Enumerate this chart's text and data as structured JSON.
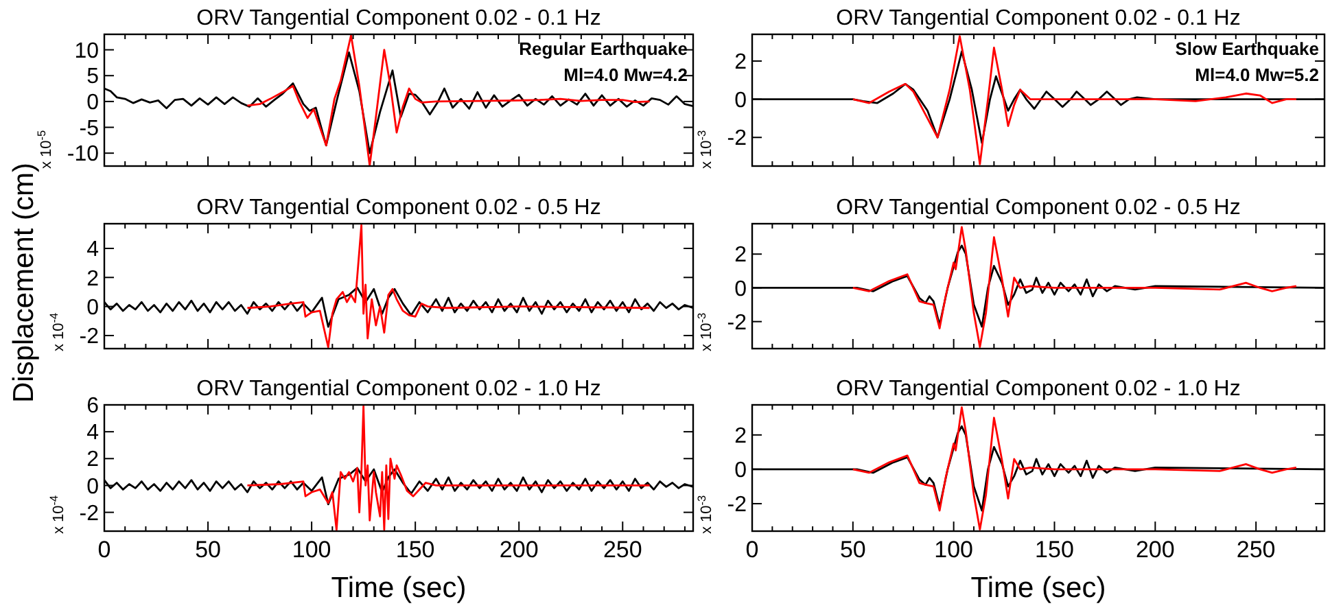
{
  "chart_data": [
    {
      "type": "line",
      "title": "ORV Tangential Component 0.02 - 0.1 Hz",
      "ylabel": "x 10$^{-5}$",
      "annotations": [
        "Regular Earthquake",
        "Ml=4.0 Mw=4.2"
      ],
      "tick_labels": "y",
      "xlim": [
        0,
        284
      ],
      "xticks": [
        0,
        {
          "value": 10,
          "label": null
        },
        {
          "value": 20,
          "label": null
        },
        {
          "value": 30,
          "label": null
        },
        {
          "value": 40,
          "label": null
        },
        50,
        {
          "value": 60,
          "label": null
        },
        {
          "value": 70,
          "label": null
        },
        {
          "value": 80,
          "label": null
        },
        {
          "value": 90,
          "label": null
        },
        100,
        {
          "value": 110,
          "label": null
        },
        {
          "value": 120,
          "label": null
        },
        {
          "value": 130,
          "label": null
        },
        {
          "value": 140,
          "label": null
        },
        150,
        {
          "value": 160,
          "label": null
        },
        {
          "value": 170,
          "label": null
        },
        {
          "value": 180,
          "label": null
        },
        {
          "value": 190,
          "label": null
        },
        200,
        {
          "value": 210,
          "label": null
        },
        {
          "value": 220,
          "label": null
        },
        {
          "value": 230,
          "label": null
        },
        {
          "value": 240,
          "label": null
        },
        250,
        {
          "value": 260,
          "label": null
        },
        {
          "value": 270,
          "label": null
        },
        {
          "value": 280,
          "label": null
        }
      ],
      "ylim": [
        -12.5,
        13
      ],
      "yticks": [
        -10,
        -5,
        0,
        5,
        10
      ],
      "series": [
        {
          "color": "#000000",
          "x": [
            0,
            3,
            6,
            10,
            14,
            18,
            22,
            26,
            30,
            34,
            38,
            42,
            46,
            50,
            54,
            58,
            62,
            66,
            70,
            74,
            78,
            82,
            86,
            91,
            96,
            99,
            102,
            107,
            112,
            118,
            123,
            128,
            133,
            139,
            143,
            147,
            150,
            153,
            157,
            161,
            164,
            168,
            172,
            176,
            180,
            184,
            188,
            192,
            196,
            200,
            204,
            208,
            212,
            216,
            220,
            224,
            228,
            232,
            236,
            240,
            244,
            248,
            252,
            256,
            260,
            264,
            268,
            272,
            276,
            280,
            284
          ],
          "values": [
            2.5,
            2,
            0.8,
            0.5,
            -0.3,
            0.4,
            -0.2,
            0.2,
            -1.3,
            0.3,
            0.5,
            -0.8,
            0.6,
            -0.6,
            0.8,
            -0.5,
            0.8,
            -0.3,
            -1,
            0.6,
            -1,
            0.3,
            1.5,
            3.5,
            -0.5,
            -1.8,
            -1.2,
            -8.5,
            0,
            9.5,
            2,
            -10,
            -2,
            6,
            -3,
            1.5,
            1.3,
            0,
            -2.5,
            0,
            2.5,
            -1.2,
            0.5,
            -1.4,
            1.8,
            -1.2,
            1.2,
            -1,
            0.2,
            1.3,
            -0.8,
            0.5,
            -0.6,
            1,
            -0.8,
            0.4,
            -0.6,
            1.5,
            -0.8,
            1.2,
            -0.8,
            0.5,
            -1,
            0.2,
            -0.8,
            0.6,
            0.3,
            -0.6,
            1,
            -0.5,
            -0.9
          ]
        },
        {
          "color": "#ff0000",
          "x": [
            69,
            75,
            80,
            86,
            91,
            94,
            98,
            101,
            107,
            111,
            114,
            119,
            123,
            128,
            131,
            135,
            138,
            141,
            144,
            147,
            150,
            153,
            160,
            180,
            200,
            210,
            220,
            230,
            240,
            250,
            256,
            263
          ],
          "values": [
            -0.8,
            -0.5,
            0.5,
            1.8,
            3,
            0,
            -3.2,
            -1.5,
            -8.5,
            0.5,
            4,
            12.8,
            3,
            -12.4,
            -3,
            10,
            3,
            -6,
            -1,
            2.5,
            0.5,
            -0.2,
            0,
            0.1,
            0.2,
            0.3,
            0.5,
            0.1,
            0.3,
            0.3,
            -0.1,
            0
          ]
        }
      ]
    },
    {
      "type": "line",
      "title": "ORV Tangential Component 0.02 - 0.1 Hz",
      "ylabel": "x 10$^{-3}$",
      "annotations": [
        "Slow Earthquake",
        "Ml=4.0 Mw=5.2"
      ],
      "tick_labels": "y",
      "xlim": [
        0,
        284
      ],
      "xticks": [
        0,
        {
          "value": 10,
          "label": null
        },
        {
          "value": 20,
          "label": null
        },
        {
          "value": 30,
          "label": null
        },
        {
          "value": 40,
          "label": null
        },
        50,
        {
          "value": 60,
          "label": null
        },
        {
          "value": 70,
          "label": null
        },
        {
          "value": 80,
          "label": null
        },
        {
          "value": 90,
          "label": null
        },
        100,
        {
          "value": 110,
          "label": null
        },
        {
          "value": 120,
          "label": null
        },
        {
          "value": 130,
          "label": null
        },
        {
          "value": 140,
          "label": null
        },
        150,
        {
          "value": 160,
          "label": null
        },
        {
          "value": 170,
          "label": null
        },
        {
          "value": 180,
          "label": null
        },
        {
          "value": 190,
          "label": null
        },
        200,
        {
          "value": 210,
          "label": null
        },
        {
          "value": 220,
          "label": null
        },
        {
          "value": 230,
          "label": null
        },
        {
          "value": 240,
          "label": null
        },
        250,
        {
          "value": 260,
          "label": null
        },
        {
          "value": 270,
          "label": null
        },
        {
          "value": 280,
          "label": null
        }
      ],
      "ylim": [
        -3.5,
        3.4
      ],
      "yticks": [
        -2,
        0,
        2
      ],
      "series": [
        {
          "color": "#000000",
          "x": [
            0,
            20,
            40,
            50,
            55,
            62,
            70,
            76,
            80,
            87,
            92,
            98,
            104,
            109,
            114,
            118,
            121,
            124,
            127,
            130,
            133,
            136,
            140,
            146,
            150,
            154,
            158,
            161,
            165,
            168,
            172,
            176,
            180,
            183,
            187,
            191,
            200,
            284
          ],
          "values": [
            0,
            0,
            0,
            0,
            -0.1,
            -0.2,
            0.3,
            0.8,
            0.5,
            -0.6,
            -2,
            0,
            2.5,
            0.5,
            -2.3,
            0,
            1.2,
            0.3,
            -0.6,
            0,
            0.5,
            0,
            -0.5,
            0.4,
            0,
            -0.4,
            0,
            0.4,
            0,
            -0.3,
            0,
            0.4,
            0,
            -0.3,
            0,
            0.1,
            0,
            0
          ]
        },
        {
          "color": "#ff0000",
          "x": [
            50,
            58,
            68,
            76,
            80,
            86,
            92,
            98,
            103,
            108,
            113,
            117,
            120,
            124,
            127,
            130,
            133,
            138,
            150,
            200,
            220,
            235,
            245,
            252,
            258,
            265,
            270
          ],
          "values": [
            0,
            -0.2,
            0.4,
            0.8,
            0.4,
            -0.8,
            -2,
            0.5,
            3.3,
            0.5,
            -3.4,
            0,
            2.7,
            0.5,
            -1.4,
            -0.3,
            0.5,
            0,
            0,
            0,
            -0.1,
            0.1,
            0.3,
            0.2,
            -0.2,
            0,
            0
          ]
        }
      ]
    },
    {
      "type": "line",
      "title": "ORV Tangential Component 0.02 - 0.5 Hz",
      "ylabel": "x 10$^{-4}$",
      "annotations": [
        "Displacement (cm)"
      ],
      "tick_labels": "y",
      "xlim": [
        0,
        284
      ],
      "xticks": [
        0,
        {
          "value": 10,
          "label": null
        },
        {
          "value": 20,
          "label": null
        },
        {
          "value": 30,
          "label": null
        },
        {
          "value": 40,
          "label": null
        },
        50,
        {
          "value": 60,
          "label": null
        },
        {
          "value": 70,
          "label": null
        },
        {
          "value": 80,
          "label": null
        },
        {
          "value": 90,
          "label": null
        },
        100,
        {
          "value": 110,
          "label": null
        },
        {
          "value": 120,
          "label": null
        },
        {
          "value": 130,
          "label": null
        },
        {
          "value": 140,
          "label": null
        },
        150,
        {
          "value": 160,
          "label": null
        },
        {
          "value": 170,
          "label": null
        },
        {
          "value": 180,
          "label": null
        },
        {
          "value": 190,
          "label": null
        },
        200,
        {
          "value": 210,
          "label": null
        },
        {
          "value": 220,
          "label": null
        },
        {
          "value": 230,
          "label": null
        },
        {
          "value": 240,
          "label": null
        },
        250,
        {
          "value": 260,
          "label": null
        },
        {
          "value": 270,
          "label": null
        },
        {
          "value": 280,
          "label": null
        }
      ],
      "ylim": [
        -2.9,
        5.7
      ],
      "yticks": [
        -2,
        0,
        2,
        4
      ],
      "series": [
        {
          "color": "#000000",
          "x": [
            0,
            3,
            6,
            9,
            12,
            15,
            18,
            21,
            24,
            27,
            30,
            33,
            36,
            39,
            42,
            45,
            48,
            51,
            54,
            57,
            60,
            63,
            66,
            69,
            72,
            75,
            78,
            81,
            84,
            87,
            90,
            93,
            96,
            100,
            105,
            108,
            113,
            118,
            122,
            126,
            130,
            134,
            137,
            140,
            144,
            148,
            152,
            156,
            160,
            163,
            166,
            169,
            172,
            175,
            178,
            181,
            184,
            187,
            190,
            193,
            196,
            199,
            202,
            205,
            208,
            211,
            214,
            217,
            220,
            223,
            226,
            229,
            232,
            235,
            238,
            241,
            244,
            247,
            250,
            253,
            256,
            259,
            262,
            265,
            268,
            271,
            274,
            277,
            280,
            284
          ],
          "values": [
            0.3,
            -0.2,
            0.2,
            -0.3,
            0.1,
            -0.2,
            0.3,
            -0.3,
            0.1,
            -0.4,
            0.2,
            -0.3,
            0.3,
            -0.2,
            0.4,
            -0.3,
            0.2,
            -0.4,
            0.3,
            -0.2,
            0.3,
            -0.3,
            0.1,
            -0.5,
            0.3,
            -0.2,
            0.2,
            -0.3,
            0.3,
            -0.2,
            0.3,
            -0.3,
            0.2,
            -0.4,
            0.6,
            -1.4,
            0.5,
            0.8,
            1.3,
            0.3,
            1.2,
            -0.5,
            0.6,
            1.2,
            0.2,
            -0.6,
            0.3,
            -0.4,
            0.5,
            -0.3,
            0.6,
            -0.4,
            0.2,
            -0.3,
            0.4,
            -0.2,
            0.3,
            -0.4,
            0.5,
            -0.3,
            0.2,
            -0.4,
            0.6,
            -0.3,
            0.3,
            -0.5,
            0.4,
            -0.2,
            0.3,
            -0.4,
            0.2,
            -0.3,
            0.5,
            -0.4,
            0.3,
            -0.2,
            0.4,
            -0.3,
            0.3,
            -0.4,
            0.5,
            -0.2,
            0.2,
            -0.3,
            0.3,
            -0.1,
            0.2,
            -0.2,
            0.1,
            -0.1
          ]
        },
        {
          "color": "#ff0000",
          "x": [
            69,
            80,
            90,
            96,
            97,
            100,
            104,
            108,
            110,
            112,
            115,
            117,
            119,
            121,
            124,
            125,
            126,
            127,
            129,
            131,
            133,
            135,
            137,
            139,
            141,
            144,
            147,
            150,
            153,
            156,
            165,
            200,
            263
          ],
          "values": [
            -0.1,
            0,
            0.2,
            0.3,
            -0.7,
            -0.4,
            -0.3,
            -2.8,
            -0.5,
            0.5,
            1,
            0.3,
            0.8,
            0.3,
            5.6,
            -0.5,
            1.5,
            -2.2,
            0.5,
            -1.3,
            0,
            -1.8,
            0.8,
            1.2,
            0.5,
            -0.3,
            -0.6,
            -0.7,
            0.2,
            0,
            -0.1,
            0,
            -0.1
          ]
        }
      ]
    },
    {
      "type": "line",
      "title": "ORV Tangential Component 0.02 - 0.5 Hz",
      "ylabel": "x 10$^{-3}$",
      "tick_labels": "y",
      "xlim": [
        0,
        284
      ],
      "xticks": [
        0,
        {
          "value": 10,
          "label": null
        },
        {
          "value": 20,
          "label": null
        },
        {
          "value": 30,
          "label": null
        },
        {
          "value": 40,
          "label": null
        },
        50,
        {
          "value": 60,
          "label": null
        },
        {
          "value": 70,
          "label": null
        },
        {
          "value": 80,
          "label": null
        },
        {
          "value": 90,
          "label": null
        },
        100,
        {
          "value": 110,
          "label": null
        },
        {
          "value": 120,
          "label": null
        },
        {
          "value": 130,
          "label": null
        },
        {
          "value": 140,
          "label": null
        },
        150,
        {
          "value": 160,
          "label": null
        },
        {
          "value": 170,
          "label": null
        },
        {
          "value": 180,
          "label": null
        },
        {
          "value": 190,
          "label": null
        },
        200,
        {
          "value": 210,
          "label": null
        },
        {
          "value": 220,
          "label": null
        },
        {
          "value": 230,
          "label": null
        },
        {
          "value": 240,
          "label": null
        },
        250,
        {
          "value": 260,
          "label": null
        },
        {
          "value": 270,
          "label": null
        },
        {
          "value": 280,
          "label": null
        }
      ],
      "ylim": [
        -3.6,
        3.8
      ],
      "yticks": [
        -2,
        0,
        2
      ],
      "series": [
        {
          "color": "#000000",
          "x": [
            0,
            52,
            60,
            70,
            77,
            83,
            86,
            88,
            90,
            93,
            97,
            102,
            104,
            106,
            110,
            114,
            117,
            120,
            124,
            127,
            130,
            133,
            136,
            139,
            141,
            144,
            147,
            150,
            153,
            157,
            160,
            163,
            166,
            169,
            172,
            176,
            180,
            190,
            200,
            284
          ],
          "values": [
            0,
            0,
            -0.2,
            0.4,
            0.7,
            -0.6,
            -0.9,
            -0.5,
            -0.8,
            -2.2,
            0,
            2.1,
            2.5,
            2,
            -1,
            -2.3,
            0,
            1.3,
            0.3,
            -1,
            -0.4,
            0.5,
            -0.3,
            -0.1,
            0.6,
            -0.3,
            0.3,
            -0.4,
            0.3,
            -0.2,
            0.2,
            -0.4,
            0.5,
            -0.5,
            0.2,
            -0.2,
            0.1,
            -0.1,
            0.1,
            0
          ]
        },
        {
          "color": "#ff0000",
          "x": [
            50,
            58,
            68,
            77,
            83,
            86,
            90,
            93,
            96,
            100,
            101,
            104,
            106,
            110,
            113,
            116,
            120,
            124,
            127,
            130,
            133,
            138,
            150,
            200,
            232,
            245,
            252,
            258,
            265,
            270
          ],
          "values": [
            0,
            -0.2,
            0.4,
            0.8,
            -0.8,
            -0.9,
            -1,
            -2.4,
            -0.5,
            1.5,
            1.1,
            3.6,
            2.2,
            -1.5,
            -3.5,
            -1.5,
            3,
            0.5,
            -1.7,
            0.6,
            0,
            0.1,
            0,
            0,
            -0.1,
            0.3,
            0,
            -0.2,
            0,
            0.1
          ]
        }
      ]
    },
    {
      "type": "line",
      "title": "ORV Tangential Component 0.02 - 1.0 Hz",
      "xlabel": "Time (sec)",
      "ylabel": "x 10$^{-4}$",
      "xlim": [
        0,
        284
      ],
      "xticks": [
        0,
        {
          "value": 10,
          "label": null
        },
        {
          "value": 20,
          "label": null
        },
        {
          "value": 30,
          "label": null
        },
        {
          "value": 40,
          "label": null
        },
        50,
        {
          "value": 60,
          "label": null
        },
        {
          "value": 70,
          "label": null
        },
        {
          "value": 80,
          "label": null
        },
        {
          "value": 90,
          "label": null
        },
        100,
        {
          "value": 110,
          "label": null
        },
        {
          "value": 120,
          "label": null
        },
        {
          "value": 130,
          "label": null
        },
        {
          "value": 140,
          "label": null
        },
        150,
        {
          "value": 160,
          "label": null
        },
        {
          "value": 170,
          "label": null
        },
        {
          "value": 180,
          "label": null
        },
        {
          "value": 190,
          "label": null
        },
        200,
        {
          "value": 210,
          "label": null
        },
        {
          "value": 220,
          "label": null
        },
        {
          "value": 230,
          "label": null
        },
        {
          "value": 240,
          "label": null
        },
        250,
        {
          "value": 260,
          "label": null
        },
        {
          "value": 270,
          "label": null
        },
        {
          "value": 280,
          "label": null
        }
      ],
      "ylim": [
        -3.4,
        6
      ],
      "yticks": [
        -2,
        0,
        2,
        4,
        6
      ],
      "series": [
        {
          "color": "#000000",
          "x": [
            0,
            3,
            6,
            9,
            12,
            15,
            18,
            21,
            24,
            27,
            30,
            33,
            36,
            39,
            42,
            45,
            48,
            51,
            54,
            57,
            60,
            63,
            66,
            69,
            72,
            75,
            78,
            81,
            84,
            87,
            90,
            93,
            96,
            100,
            105,
            108,
            113,
            118,
            122,
            126,
            130,
            134,
            137,
            140,
            144,
            148,
            152,
            156,
            160,
            163,
            166,
            169,
            172,
            175,
            178,
            181,
            184,
            187,
            190,
            193,
            196,
            199,
            202,
            205,
            208,
            211,
            214,
            217,
            220,
            223,
            226,
            229,
            232,
            235,
            238,
            241,
            244,
            247,
            250,
            253,
            256,
            259,
            262,
            265,
            268,
            271,
            274,
            277,
            280,
            284
          ],
          "values": [
            0.4,
            -0.2,
            0.2,
            -0.3,
            0.1,
            -0.2,
            0.3,
            -0.3,
            0.1,
            -0.4,
            0.2,
            -0.3,
            0.3,
            -0.2,
            0.4,
            -0.3,
            0.2,
            -0.4,
            0.3,
            -0.2,
            0.3,
            -0.3,
            0.1,
            -0.5,
            0.3,
            -0.2,
            0.2,
            -0.3,
            0.3,
            -0.2,
            0.3,
            -0.3,
            0.2,
            -0.4,
            0.6,
            -1.4,
            0.5,
            0.8,
            1.3,
            0.3,
            1.2,
            -0.5,
            0.6,
            1.2,
            0.2,
            -0.6,
            0.3,
            -0.4,
            0.5,
            -0.3,
            0.6,
            -0.4,
            0.2,
            -0.3,
            0.4,
            -0.2,
            0.3,
            -0.4,
            0.5,
            -0.3,
            0.2,
            -0.4,
            0.6,
            -0.3,
            0.3,
            -0.5,
            0.4,
            -0.2,
            0.3,
            -0.4,
            0.2,
            -0.3,
            0.5,
            -0.4,
            0.3,
            -0.2,
            0.4,
            -0.3,
            0.3,
            -0.4,
            0.5,
            -0.2,
            0.2,
            -0.3,
            0.3,
            -0.1,
            0.2,
            -0.2,
            0.1,
            -0.1
          ]
        },
        {
          "color": "#ff0000",
          "x": [
            69,
            85,
            96,
            97,
            100,
            104,
            108,
            110,
            112,
            114,
            116,
            118,
            120,
            122,
            123,
            124,
            125,
            126,
            127,
            128,
            130,
            131,
            133,
            134,
            135,
            136,
            137,
            138,
            140,
            141,
            143,
            146,
            149,
            152,
            155,
            160,
            200,
            263
          ],
          "values": [
            0,
            0.1,
            0.3,
            -0.8,
            -0.5,
            -0.3,
            -1.3,
            -0.5,
            -3.3,
            1,
            0.5,
            1,
            0.3,
            1.3,
            -2,
            1,
            5.9,
            0,
            1.5,
            -2.6,
            1,
            -0.5,
            -2.3,
            1,
            -3.3,
            1.5,
            -2.5,
            2,
            0.5,
            1.5,
            0.8,
            -0.4,
            -0.8,
            -0.3,
            0.2,
            0,
            0,
            0
          ]
        }
      ]
    },
    {
      "type": "line",
      "title": "ORV Tangential Component 0.02 - 1.0 Hz",
      "xlabel": "Time (sec)",
      "ylabel": "x 10$^{-3}$",
      "xlim": [
        0,
        284
      ],
      "xticks": [
        0,
        {
          "value": 10,
          "label": null
        },
        {
          "value": 20,
          "label": null
        },
        {
          "value": 30,
          "label": null
        },
        {
          "value": 40,
          "label": null
        },
        50,
        {
          "value": 60,
          "label": null
        },
        {
          "value": 70,
          "label": null
        },
        {
          "value": 80,
          "label": null
        },
        {
          "value": 90,
          "label": null
        },
        100,
        {
          "value": 110,
          "label": null
        },
        {
          "value": 120,
          "label": null
        },
        {
          "value": 130,
          "label": null
        },
        {
          "value": 140,
          "label": null
        },
        150,
        {
          "value": 160,
          "label": null
        },
        {
          "value": 170,
          "label": null
        },
        {
          "value": 180,
          "label": null
        },
        {
          "value": 190,
          "label": null
        },
        200,
        {
          "value": 210,
          "label": null
        },
        {
          "value": 220,
          "label": null
        },
        {
          "value": 230,
          "label": null
        },
        {
          "value": 240,
          "label": null
        },
        250,
        {
          "value": 260,
          "label": null
        },
        {
          "value": 270,
          "label": null
        },
        {
          "value": 280,
          "label": null
        }
      ],
      "ylim": [
        -3.6,
        3.75
      ],
      "yticks": [
        -2,
        0,
        2
      ],
      "series": [
        {
          "color": "#000000",
          "x": [
            0,
            52,
            60,
            70,
            77,
            83,
            86,
            88,
            90,
            93,
            97,
            102,
            104,
            106,
            110,
            114,
            117,
            120,
            124,
            127,
            130,
            133,
            136,
            139,
            141,
            144,
            147,
            150,
            153,
            157,
            160,
            163,
            166,
            169,
            172,
            176,
            180,
            190,
            200,
            284
          ],
          "values": [
            0,
            0,
            -0.2,
            0.4,
            0.7,
            -0.6,
            -0.9,
            -0.5,
            -0.8,
            -2.2,
            0,
            2.1,
            2.5,
            2,
            -1,
            -2.4,
            0,
            1.3,
            0.3,
            -1,
            -0.4,
            0.5,
            -0.3,
            -0.1,
            0.6,
            -0.3,
            0.3,
            -0.4,
            0.3,
            -0.2,
            0.2,
            -0.4,
            0.5,
            -0.5,
            0.2,
            -0.2,
            0.1,
            -0.1,
            0.1,
            0
          ]
        },
        {
          "color": "#ff0000",
          "x": [
            50,
            58,
            68,
            77,
            83,
            86,
            90,
            93,
            96,
            100,
            101,
            104,
            106,
            110,
            113,
            116,
            120,
            124,
            127,
            130,
            133,
            138,
            150,
            200,
            232,
            245,
            252,
            258,
            265,
            270
          ],
          "values": [
            0,
            -0.2,
            0.4,
            0.8,
            -0.8,
            -0.9,
            -1,
            -2.4,
            -0.5,
            1.5,
            1.1,
            3.6,
            2.2,
            -1.5,
            -3.5,
            -1.5,
            3,
            0.5,
            -1.7,
            0.6,
            0,
            0.1,
            0,
            0,
            -0.1,
            0.3,
            0,
            -0.2,
            0,
            0.1
          ]
        }
      ]
    }
  ]
}
